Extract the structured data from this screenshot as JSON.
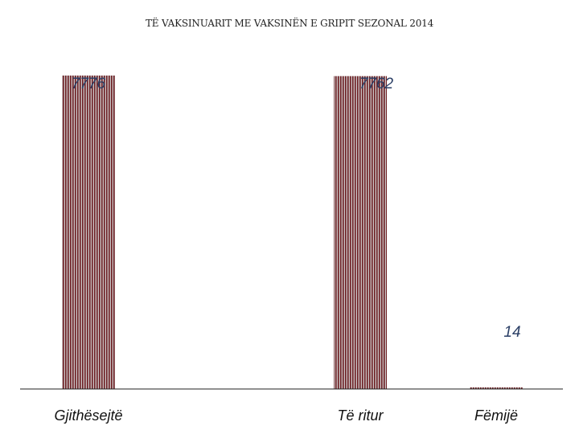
{
  "chart_data": {
    "type": "bar",
    "title": "TË VAKSINUARIT ME VAKSINËN E GRIPIT SEZONAL 2014",
    "categories": [
      "Gjithësejtë",
      "Të ritur",
      "Fëmijë"
    ],
    "values": [
      7776,
      7762,
      14
    ],
    "value_labels": [
      "7776",
      "7762",
      "14"
    ],
    "xlabel": "",
    "ylabel": "",
    "ylim": [
      0,
      7776
    ],
    "grid": false,
    "legend": "none",
    "colors": {
      "bar": "#6e1f24",
      "bar_stripe": "#c9c2c2",
      "label": "#2b3f66",
      "axis": "#222222"
    }
  }
}
